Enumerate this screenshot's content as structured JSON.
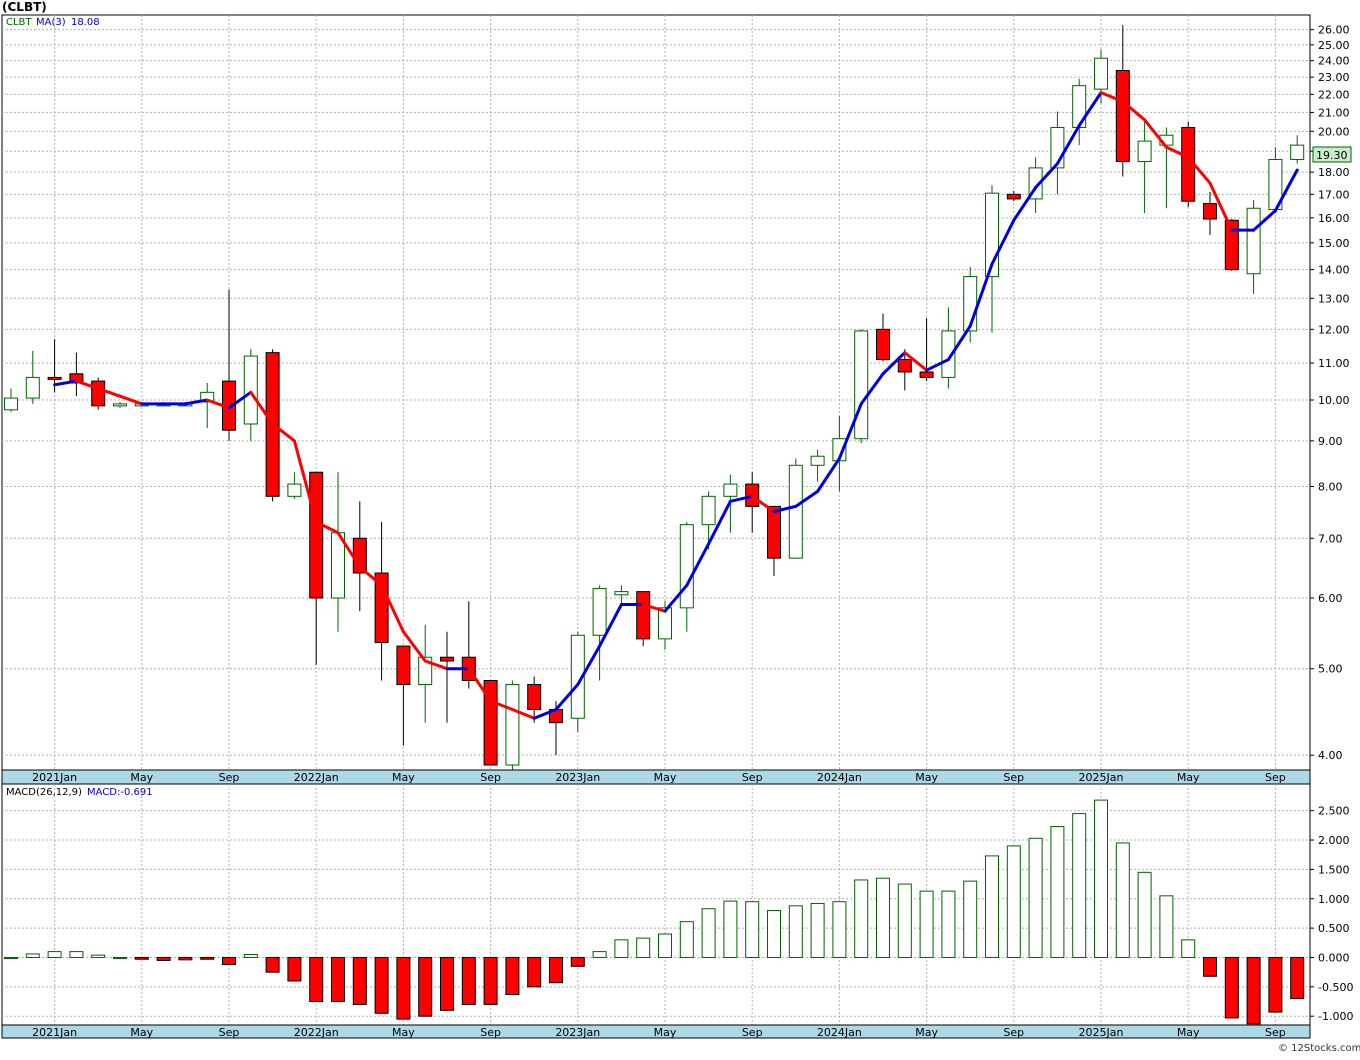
{
  "symbol_title": "(CLBT)",
  "price_legend": {
    "symbol": "CLBT",
    "ma_label": "MA(3)",
    "ma_value": "18.08"
  },
  "macd_legend": {
    "params": "MACD(26,12,9)",
    "value_label": "MACD:-0.691"
  },
  "last_price_label": "19.30",
  "footer": "© 12Stocks.com",
  "colors": {
    "up": "#006400",
    "down": "#ff0000",
    "ma_up": "#0000dd",
    "ma_down": "#ff0000",
    "axis_band": "#add8e6",
    "grid": "#b0b0b0",
    "price_box": "#c8f0c8"
  },
  "chart_data": [
    {
      "type": "candlestick",
      "title": "(CLBT)",
      "scale": "log",
      "ylim": [
        3.85,
        27.0
      ],
      "y_ticks": [
        "4.00",
        "5.00",
        "6.00",
        "7.00",
        "8.00",
        "9.00",
        "10.00",
        "11.00",
        "12.00",
        "13.00",
        "14.00",
        "15.00",
        "16.00",
        "17.00",
        "18.00",
        "19.00",
        "20.00",
        "21.00",
        "22.00",
        "23.00",
        "24.00",
        "25.00",
        "26.00"
      ],
      "x_labels": [
        "2021Jan",
        "May",
        "Sep",
        "2022Jan",
        "May",
        "Sep",
        "2023Jan",
        "May",
        "Sep",
        "2024Jan",
        "May",
        "Sep",
        "2025Jan",
        "May",
        "Sep"
      ],
      "grid": true,
      "candles": [
        {
          "month": "2020-11",
          "o": 9.75,
          "h": 10.3,
          "l": 9.7,
          "c": 10.05
        },
        {
          "month": "2020-12",
          "o": 10.05,
          "h": 11.35,
          "l": 9.9,
          "c": 10.6
        },
        {
          "month": "2021-01",
          "o": 10.6,
          "h": 11.7,
          "l": 10.2,
          "c": 10.55
        },
        {
          "month": "2021-02",
          "o": 10.7,
          "h": 11.3,
          "l": 10.1,
          "c": 10.45
        },
        {
          "month": "2021-03",
          "o": 10.5,
          "h": 10.6,
          "l": 9.75,
          "c": 9.85
        },
        {
          "month": "2021-04",
          "o": 9.85,
          "h": 9.95,
          "l": 9.8,
          "c": 9.9
        },
        {
          "month": "2021-05",
          "o": 9.9,
          "h": 9.95,
          "l": 9.85,
          "c": 9.9
        },
        {
          "month": "2021-06",
          "o": 9.9,
          "h": 9.95,
          "l": 9.85,
          "c": 9.9
        },
        {
          "month": "2021-07",
          "o": 9.9,
          "h": 9.95,
          "l": 9.85,
          "c": 9.9
        },
        {
          "month": "2021-08",
          "o": 9.95,
          "h": 10.45,
          "l": 9.3,
          "c": 10.2
        },
        {
          "month": "2021-09",
          "o": 10.5,
          "h": 13.3,
          "l": 9.0,
          "c": 9.25
        },
        {
          "month": "2021-10",
          "o": 9.4,
          "h": 11.4,
          "l": 9.0,
          "c": 11.2
        },
        {
          "month": "2021-11",
          "o": 11.3,
          "h": 11.4,
          "l": 7.7,
          "c": 7.8
        },
        {
          "month": "2021-12",
          "o": 7.8,
          "h": 8.3,
          "l": 7.75,
          "c": 8.05
        },
        {
          "month": "2022-01",
          "o": 8.3,
          "h": 8.3,
          "l": 5.05,
          "c": 6.0
        },
        {
          "month": "2022-02",
          "o": 6.0,
          "h": 8.3,
          "l": 5.5,
          "c": 7.1
        },
        {
          "month": "2022-03",
          "o": 7.0,
          "h": 7.7,
          "l": 5.8,
          "c": 6.4
        },
        {
          "month": "2022-04",
          "o": 6.4,
          "h": 7.3,
          "l": 4.85,
          "c": 5.35
        },
        {
          "month": "2022-05",
          "o": 5.3,
          "h": 5.3,
          "l": 4.1,
          "c": 4.8
        },
        {
          "month": "2022-06",
          "o": 4.8,
          "h": 5.6,
          "l": 4.35,
          "c": 5.15
        },
        {
          "month": "2022-07",
          "o": 5.15,
          "h": 5.5,
          "l": 4.35,
          "c": 5.1
        },
        {
          "month": "2022-08",
          "o": 5.15,
          "h": 5.95,
          "l": 4.75,
          "c": 4.85
        },
        {
          "month": "2022-09",
          "o": 4.85,
          "h": 4.85,
          "l": 3.9,
          "c": 3.9
        },
        {
          "month": "2022-10",
          "o": 3.9,
          "h": 4.85,
          "l": 3.8,
          "c": 4.8
        },
        {
          "month": "2022-11",
          "o": 4.8,
          "h": 4.9,
          "l": 4.35,
          "c": 4.5
        },
        {
          "month": "2022-12",
          "o": 4.5,
          "h": 4.6,
          "l": 4.0,
          "c": 4.35
        },
        {
          "month": "2023-01",
          "o": 4.4,
          "h": 5.5,
          "l": 4.25,
          "c": 5.45
        },
        {
          "month": "2023-02",
          "o": 5.45,
          "h": 6.2,
          "l": 4.85,
          "c": 6.15
        },
        {
          "month": "2023-03",
          "o": 6.05,
          "h": 6.2,
          "l": 5.9,
          "c": 6.1
        },
        {
          "month": "2023-04",
          "o": 6.1,
          "h": 6.1,
          "l": 5.3,
          "c": 5.4
        },
        {
          "month": "2023-05",
          "o": 5.4,
          "h": 5.95,
          "l": 5.25,
          "c": 5.85
        },
        {
          "month": "2023-06",
          "o": 5.85,
          "h": 7.3,
          "l": 5.5,
          "c": 7.25
        },
        {
          "month": "2023-07",
          "o": 7.25,
          "h": 7.9,
          "l": 6.8,
          "c": 7.8
        },
        {
          "month": "2023-08",
          "o": 7.8,
          "h": 8.25,
          "l": 7.1,
          "c": 8.05
        },
        {
          "month": "2023-09",
          "o": 8.05,
          "h": 8.3,
          "l": 7.1,
          "c": 7.6
        },
        {
          "month": "2023-10",
          "o": 7.6,
          "h": 7.6,
          "l": 6.35,
          "c": 6.65
        },
        {
          "month": "2023-11",
          "o": 6.65,
          "h": 8.6,
          "l": 6.65,
          "c": 8.45
        },
        {
          "month": "2023-12",
          "o": 8.45,
          "h": 8.8,
          "l": 8.1,
          "c": 8.65
        },
        {
          "month": "2024-01",
          "o": 8.55,
          "h": 9.6,
          "l": 7.9,
          "c": 9.05
        },
        {
          "month": "2024-02",
          "o": 9.05,
          "h": 12.0,
          "l": 8.95,
          "c": 11.95
        },
        {
          "month": "2024-03",
          "o": 12.0,
          "h": 12.5,
          "l": 11.05,
          "c": 11.1
        },
        {
          "month": "2024-04",
          "o": 11.1,
          "h": 11.4,
          "l": 10.25,
          "c": 10.75
        },
        {
          "month": "2024-05",
          "o": 10.75,
          "h": 12.35,
          "l": 10.5,
          "c": 10.6
        },
        {
          "month": "2024-06",
          "o": 10.6,
          "h": 12.7,
          "l": 10.3,
          "c": 11.95
        },
        {
          "month": "2024-07",
          "o": 11.95,
          "h": 14.1,
          "l": 11.6,
          "c": 13.75
        },
        {
          "month": "2024-08",
          "o": 13.75,
          "h": 17.4,
          "l": 11.9,
          "c": 17.05
        },
        {
          "month": "2024-09",
          "o": 17.0,
          "h": 17.15,
          "l": 16.7,
          "c": 16.8
        },
        {
          "month": "2024-10",
          "o": 16.8,
          "h": 18.7,
          "l": 16.2,
          "c": 18.2
        },
        {
          "month": "2024-11",
          "o": 18.2,
          "h": 21.05,
          "l": 17.0,
          "c": 20.2
        },
        {
          "month": "2024-12",
          "o": 20.2,
          "h": 22.9,
          "l": 19.3,
          "c": 22.5
        },
        {
          "month": "2025-01",
          "o": 22.3,
          "h": 24.7,
          "l": 21.5,
          "c": 24.15
        },
        {
          "month": "2025-02",
          "o": 23.4,
          "h": 26.3,
          "l": 17.8,
          "c": 18.5
        },
        {
          "month": "2025-03",
          "o": 18.5,
          "h": 20.7,
          "l": 16.2,
          "c": 19.5
        },
        {
          "month": "2025-04",
          "o": 19.3,
          "h": 20.2,
          "l": 16.4,
          "c": 19.8
        },
        {
          "month": "2025-05",
          "o": 20.2,
          "h": 20.5,
          "l": 16.45,
          "c": 16.7
        },
        {
          "month": "2025-06",
          "o": 16.6,
          "h": 17.1,
          "l": 15.3,
          "c": 15.95
        },
        {
          "month": "2025-07",
          "o": 15.9,
          "h": 15.95,
          "l": 13.95,
          "c": 14.0
        },
        {
          "month": "2025-08",
          "o": 13.85,
          "h": 16.75,
          "l": 13.15,
          "c": 16.4
        },
        {
          "month": "2025-09",
          "o": 16.35,
          "h": 19.2,
          "l": 16.2,
          "c": 18.6
        },
        {
          "month": "2025-10",
          "o": 18.6,
          "h": 19.8,
          "l": 18.4,
          "c": 19.3
        }
      ],
      "ma3": [
        null,
        null,
        10.4,
        10.5,
        10.3,
        10.1,
        9.9,
        9.9,
        9.9,
        10.0,
        9.8,
        10.2,
        9.4,
        9.0,
        7.3,
        7.1,
        6.5,
        6.2,
        5.5,
        5.1,
        5.0,
        5.0,
        4.6,
        4.5,
        4.4,
        4.5,
        4.8,
        5.3,
        5.9,
        5.9,
        5.8,
        6.2,
        6.9,
        7.7,
        7.8,
        7.5,
        7.6,
        7.9,
        8.6,
        9.9,
        10.7,
        11.3,
        10.8,
        11.1,
        12.1,
        14.2,
        15.9,
        17.3,
        18.4,
        20.3,
        22.1,
        21.6,
        20.6,
        19.2,
        18.7,
        17.5,
        15.5,
        15.5,
        16.3,
        18.1
      ]
    },
    {
      "type": "bar",
      "title": "MACD(26,12,9)",
      "ylim": [
        -1.15,
        2.75
      ],
      "y_ticks": [
        "-1.000",
        "-0.500",
        "0.000",
        "0.500",
        "1.000",
        "1.500",
        "2.000",
        "2.500"
      ],
      "x_labels": [
        "2021Jan",
        "May",
        "Sep",
        "2022Jan",
        "May",
        "Sep",
        "2023Jan",
        "May",
        "Sep",
        "2024Jan",
        "May",
        "Sep",
        "2025Jan",
        "May",
        "Sep"
      ],
      "values": [
        0.0,
        0.06,
        0.1,
        0.1,
        0.04,
        0.0,
        -0.03,
        -0.05,
        -0.04,
        -0.03,
        -0.12,
        0.05,
        -0.25,
        -0.4,
        -0.75,
        -0.75,
        -0.8,
        -0.95,
        -1.05,
        -1.0,
        -0.9,
        -0.8,
        -0.8,
        -0.63,
        -0.5,
        -0.43,
        -0.15,
        0.1,
        0.3,
        0.33,
        0.4,
        0.61,
        0.83,
        0.96,
        0.95,
        0.8,
        0.88,
        0.92,
        0.95,
        1.32,
        1.35,
        1.25,
        1.13,
        1.13,
        1.3,
        1.73,
        1.9,
        2.03,
        2.23,
        2.45,
        2.68,
        1.95,
        1.45,
        1.05,
        0.3,
        -0.32,
        -1.03,
        -1.13,
        -0.93,
        -0.7
      ]
    }
  ]
}
